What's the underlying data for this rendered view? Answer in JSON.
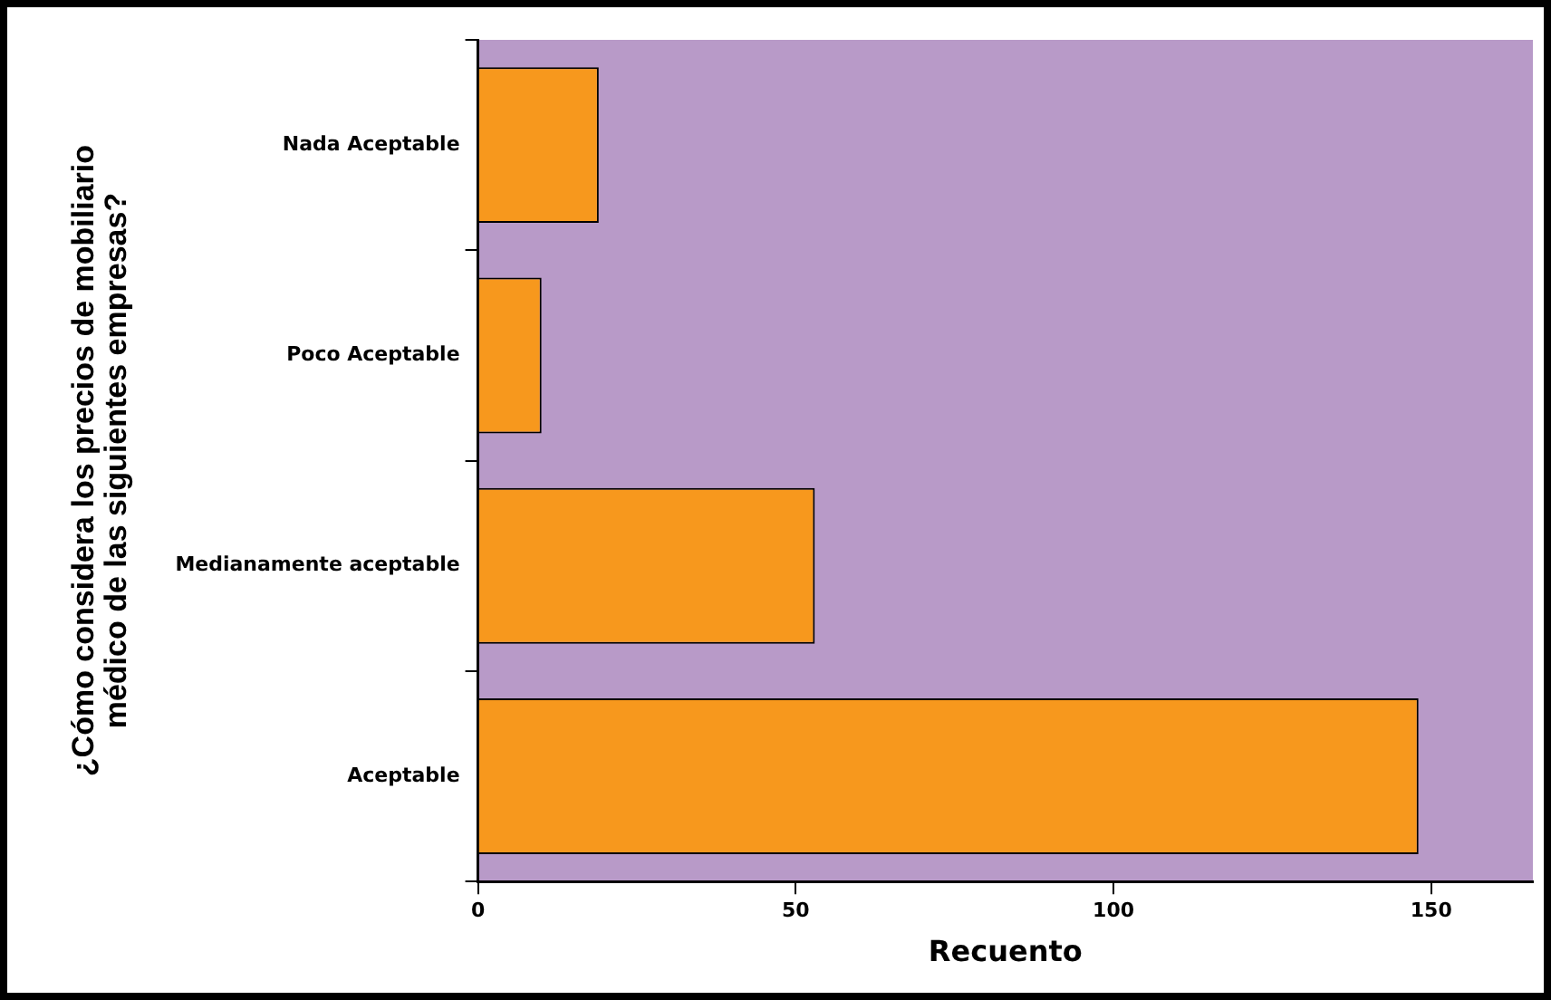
{
  "chart_data": {
    "type": "bar",
    "orientation": "horizontal",
    "xlabel": "Recuento",
    "ylabel": "¿Cómo considera los precios de mobiliario médico de las siguientes empresas?",
    "categories": [
      "Nada Aceptable",
      "Poco Aceptable",
      "Medianamente aceptable",
      "Aceptable"
    ],
    "values": [
      19,
      10,
      53,
      148
    ],
    "color": "#f7981d",
    "xlim": [
      0,
      166
    ],
    "xticks": [
      0,
      50,
      100,
      150
    ],
    "grid": false,
    "legend": false
  }
}
